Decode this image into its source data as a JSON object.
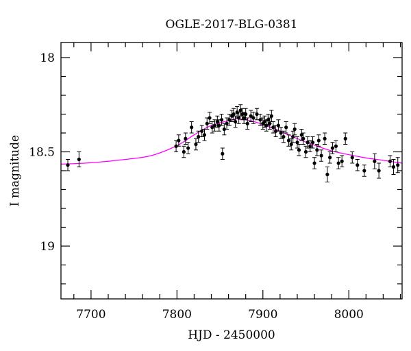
{
  "chart_data": {
    "type": "scatter",
    "title": "OGLE-2017-BLG-0381",
    "xlabel": "HJD - 2450000",
    "ylabel": "I magnitude",
    "xlim": [
      7665,
      8062
    ],
    "ylim": [
      19.28,
      17.92
    ],
    "y_inverted": true,
    "grid": false,
    "x_ticks": [
      7700,
      7800,
      7900,
      8000
    ],
    "x_tick_labels": [
      "7700",
      "7800",
      "7900",
      "8000"
    ],
    "x_minor_step": 20,
    "y_ticks": [
      18,
      18.5,
      19
    ],
    "y_tick_labels": [
      "18",
      "18.5",
      "19"
    ],
    "y_minor_step": 0.1,
    "colors": {
      "data": "#000000",
      "model": "#ff00ff",
      "frame": "#000000"
    },
    "series": [
      {
        "kind": "data",
        "x": [
          7673,
          7686,
          7799,
          7802,
          7808,
          7810,
          7813,
          7817,
          7822,
          7825,
          7829,
          7832,
          7835,
          7838,
          7841,
          7844,
          7847,
          7849,
          7852,
          7853,
          7855,
          7858,
          7861,
          7864,
          7866,
          7868,
          7870,
          7872,
          7874,
          7876,
          7878,
          7880,
          7882,
          7886,
          7889,
          7893,
          7897,
          7900,
          7902,
          7904,
          7906,
          7908,
          7910,
          7912,
          7915,
          7918,
          7921,
          7924,
          7927,
          7930,
          7933,
          7935,
          7937,
          7940,
          7942,
          7945,
          7947,
          7950,
          7952,
          7955,
          7958,
          7960,
          7963,
          7965,
          7968,
          7972,
          7975,
          7978,
          7981,
          7985,
          7988,
          7992,
          7996,
          8004,
          8010,
          8018,
          8030,
          8035,
          8048,
          8052,
          8057
        ],
        "y": [
          18.57,
          18.54,
          18.47,
          18.44,
          18.5,
          18.43,
          18.48,
          18.37,
          18.46,
          18.42,
          18.39,
          18.41,
          18.35,
          18.32,
          18.37,
          18.36,
          18.34,
          18.36,
          18.33,
          18.51,
          18.38,
          18.35,
          18.33,
          18.31,
          18.3,
          18.34,
          18.29,
          18.32,
          18.28,
          18.3,
          18.32,
          18.3,
          18.35,
          18.31,
          18.32,
          18.3,
          18.33,
          18.35,
          18.34,
          18.36,
          18.33,
          18.35,
          18.31,
          18.37,
          18.39,
          18.36,
          18.4,
          18.42,
          18.37,
          18.44,
          18.46,
          18.42,
          18.38,
          18.45,
          18.49,
          18.41,
          18.43,
          18.5,
          18.45,
          18.47,
          18.45,
          18.56,
          18.49,
          18.44,
          18.52,
          18.43,
          18.62,
          18.53,
          18.48,
          18.47,
          18.56,
          18.55,
          18.43,
          18.53,
          18.57,
          18.6,
          18.55,
          18.6,
          18.55,
          18.58,
          18.57
        ],
        "err": [
          0.03,
          0.04,
          0.03,
          0.03,
          0.03,
          0.03,
          0.03,
          0.03,
          0.03,
          0.03,
          0.03,
          0.03,
          0.03,
          0.03,
          0.03,
          0.03,
          0.03,
          0.03,
          0.03,
          0.03,
          0.03,
          0.03,
          0.03,
          0.03,
          0.03,
          0.03,
          0.03,
          0.03,
          0.03,
          0.03,
          0.03,
          0.03,
          0.03,
          0.03,
          0.03,
          0.03,
          0.03,
          0.03,
          0.03,
          0.03,
          0.03,
          0.03,
          0.03,
          0.03,
          0.03,
          0.03,
          0.03,
          0.03,
          0.03,
          0.03,
          0.03,
          0.03,
          0.03,
          0.03,
          0.03,
          0.03,
          0.03,
          0.03,
          0.03,
          0.03,
          0.03,
          0.03,
          0.03,
          0.03,
          0.03,
          0.03,
          0.04,
          0.03,
          0.03,
          0.03,
          0.03,
          0.03,
          0.03,
          0.03,
          0.03,
          0.03,
          0.04,
          0.04,
          0.03,
          0.04,
          0.04
        ]
      },
      {
        "kind": "model",
        "x": [
          7665,
          7700,
          7740,
          7770,
          7800,
          7820,
          7840,
          7860,
          7870,
          7880,
          7890,
          7900,
          7920,
          7940,
          7960,
          7980,
          8000,
          8020,
          8040,
          8062
        ],
        "y": [
          18.565,
          18.558,
          18.54,
          18.52,
          18.467,
          18.41,
          18.36,
          18.335,
          18.325,
          18.33,
          18.34,
          18.355,
          18.39,
          18.43,
          18.465,
          18.495,
          18.515,
          18.532,
          18.545,
          18.56
        ]
      }
    ]
  }
}
